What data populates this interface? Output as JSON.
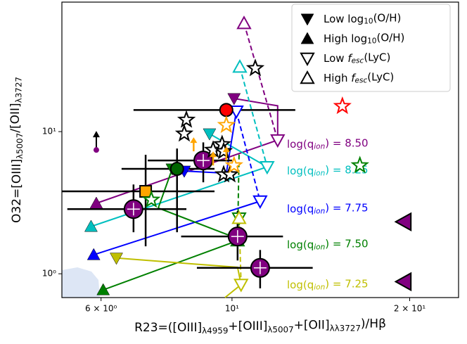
{
  "chart_data": {
    "type": "scatter",
    "log_x": true,
    "log_y": true,
    "xlim": [
      5.15,
      24.2
    ],
    "ylim": [
      0.68,
      81.5
    ],
    "xticks": [
      {
        "value": 6,
        "label": "6 × 10⁰"
      },
      {
        "value": 10,
        "label": "10¹"
      },
      {
        "value": 20,
        "label": "2 × 10¹"
      }
    ],
    "yticks": [
      {
        "value": 1,
        "label": "10⁰"
      },
      {
        "value": 10,
        "label": "10¹"
      }
    ],
    "xlabel": [
      {
        "text": "R23=([OIII]"
      },
      {
        "text": "λ4959",
        "style": "sub"
      },
      {
        "text": "+[OIII]"
      },
      {
        "text": "λ5007",
        "style": "sub"
      },
      {
        "text": "+[OII]"
      },
      {
        "text": "λλ3727",
        "style": "sub"
      },
      {
        "text": ")/Hβ"
      }
    ],
    "ylabel": [
      {
        "text": "O32=[OIII]"
      },
      {
        "text": "λ5007",
        "style": "sub"
      },
      {
        "text": "/[OII]"
      },
      {
        "text": "λ3727",
        "style": "sub"
      }
    ],
    "legend": [
      {
        "marker": "tri-down-filled",
        "label": [
          {
            "text": "Low log"
          },
          {
            "text": "10",
            "style": "sub"
          },
          {
            "text": "(O/H)"
          }
        ]
      },
      {
        "marker": "tri-up-filled",
        "label": [
          {
            "text": "High log"
          },
          {
            "text": "10",
            "style": "sub"
          },
          {
            "text": "(O/H)"
          }
        ]
      },
      {
        "marker": "tri-down-open",
        "label": [
          {
            "text": "Low "
          },
          {
            "text": "f",
            "style": "italic"
          },
          {
            "text": "esc",
            "style": "sub-italic"
          },
          {
            "text": "(LyC)"
          }
        ]
      },
      {
        "marker": "tri-up-open",
        "label": [
          {
            "text": "High "
          },
          {
            "text": "f",
            "style": "italic"
          },
          {
            "text": "esc",
            "style": "sub-italic"
          },
          {
            "text": "(LyC)"
          }
        ]
      }
    ],
    "models": [
      {
        "color": "#800080",
        "label": [
          {
            "text": "log(q"
          },
          {
            "text": "ion",
            "style": "sub-italic"
          },
          {
            "text": ") = 8.50"
          }
        ],
        "segments": [
          {
            "style": "solid",
            "x": [
              5.89,
              11.95
            ],
            "y": [
              3.13,
              8.72
            ]
          },
          {
            "style": "solid",
            "x": [
              10.08,
              11.95,
              11.95
            ],
            "y": [
              17.1,
              15.2,
              8.72
            ]
          },
          {
            "style": "dashed",
            "x": [
              10.48,
              11.95
            ],
            "y": [
              57.8,
              8.72
            ]
          }
        ],
        "markers": [
          {
            "marker": "tri-up-filled",
            "x": 5.89,
            "y": 3.13
          },
          {
            "marker": "tri-down-open",
            "x": 11.95,
            "y": 8.72
          },
          {
            "marker": "tri-down-filled",
            "x": 10.08,
            "y": 17.1
          },
          {
            "marker": "tri-up-open",
            "x": 10.48,
            "y": 57.8
          }
        ]
      },
      {
        "color": "#00bfbf",
        "label": [
          {
            "text": "log(q"
          },
          {
            "text": "ion",
            "style": "sub-italic"
          },
          {
            "text": ") = 8.25"
          }
        ],
        "segments": [
          {
            "style": "solid",
            "x": [
              5.77,
              11.47
            ],
            "y": [
              2.15,
              5.65
            ]
          },
          {
            "style": "solid",
            "x": [
              9.16,
              11.47
            ],
            "y": [
              9.66,
              5.65
            ]
          },
          {
            "style": "dashed",
            "x": [
              10.31,
              11.47
            ],
            "y": [
              28.5,
              5.65
            ]
          }
        ],
        "markers": [
          {
            "marker": "tri-up-filled",
            "x": 5.77,
            "y": 2.15
          },
          {
            "marker": "tri-down-open",
            "x": 11.47,
            "y": 5.65
          },
          {
            "marker": "tri-down-filled",
            "x": 9.16,
            "y": 9.66
          },
          {
            "marker": "tri-up-open",
            "x": 10.31,
            "y": 28.5
          }
        ]
      },
      {
        "color": "#0000ff",
        "label": [
          {
            "text": "log(q"
          },
          {
            "text": "ion",
            "style": "sub-italic"
          },
          {
            "text": ") = 7.75"
          }
        ],
        "segments": [
          {
            "style": "solid",
            "x": [
              5.83,
              11.16
            ],
            "y": [
              1.36,
              3.24
            ]
          },
          {
            "style": "solid",
            "x": [
              8.3,
              9.78,
              10.17
            ],
            "y": [
              5.28,
              5.1,
              13.9
            ]
          },
          {
            "style": "dashed",
            "x": [
              10.17,
              11.16
            ],
            "y": [
              13.9,
              3.24
            ]
          }
        ],
        "markers": [
          {
            "marker": "tri-up-filled",
            "x": 5.83,
            "y": 1.36
          },
          {
            "marker": "tri-down-open",
            "x": 11.16,
            "y": 3.24
          },
          {
            "marker": "tri-down-filled",
            "x": 8.3,
            "y": 5.28
          },
          {
            "marker": "tri-down-open",
            "x": 10.17,
            "y": 13.9
          }
        ]
      },
      {
        "color": "#008000",
        "label": [
          {
            "text": "log(q"
          },
          {
            "text": "ion",
            "style": "sub-italic"
          },
          {
            "text": ") = 7.50"
          }
        ],
        "segments": [
          {
            "style": "solid",
            "x": [
              6.05,
              10.22
            ],
            "y": [
              0.77,
              1.71
            ]
          },
          {
            "style": "solid",
            "x": [
              7.92,
              7.5,
              10.0
            ],
            "y": [
              5.47,
              2.9,
              1.83
            ]
          },
          {
            "style": "dashed",
            "x": [
              10.28,
              10.22
            ],
            "y": [
              6.9,
              1.71
            ]
          }
        ],
        "markers": [
          {
            "marker": "tri-up-filled",
            "x": 6.05,
            "y": 0.77
          },
          {
            "marker": "tri-down-open",
            "x": 10.28,
            "y": 2.46
          },
          {
            "marker": "tri-down-filled",
            "x": 7.92,
            "y": 5.47
          },
          {
            "marker": "tri-up-open",
            "x": 10.22,
            "y": 1.71
          }
        ]
      },
      {
        "color": "#bfbf00",
        "label": [
          {
            "text": "log(q"
          },
          {
            "text": "ion",
            "style": "sub-italic"
          },
          {
            "text": ") = 7.25"
          }
        ],
        "segments": [
          {
            "style": "solid",
            "x": [
              6.37,
              10.22,
              10.36
            ],
            "y": [
              1.29,
              1.11,
              0.84
            ]
          },
          {
            "style": "solid",
            "x": [
              9.73,
              10.36
            ],
            "y": [
              0.68,
              0.84
            ]
          },
          {
            "style": "dashed",
            "x": [
              10.28,
              10.36
            ],
            "y": [
              2.46,
              0.84
            ]
          }
        ],
        "markers": [
          {
            "marker": "tri-down-filled",
            "x": 6.37,
            "y": 1.29
          },
          {
            "marker": "tri-down-open",
            "x": 10.36,
            "y": 0.84
          },
          {
            "marker": "tri-up-open",
            "x": 10.28,
            "y": 2.46
          }
        ]
      }
    ],
    "points": [
      {
        "marker": "circle",
        "color": "#ff0000",
        "x": 9.78,
        "y": 14.2,
        "xrange": [
          6.81,
          12.8
        ]
      },
      {
        "marker": "circle-plus",
        "color": "#800080",
        "x": 8.94,
        "y": 6.27,
        "xrange": [
          7.2,
          10.0
        ],
        "yrange": [
          4.4,
          8.4
        ]
      },
      {
        "marker": "circle-plus",
        "color": "#800080",
        "x": 6.81,
        "y": 2.85,
        "xrange": [
          5.26,
          8.37
        ],
        "yrange": [
          1.96,
          4.25
        ]
      },
      {
        "marker": "circle-plus",
        "color": "#800080",
        "x": 10.22,
        "y": 1.83,
        "xrange": [
          8.2,
          12.2
        ],
        "yrange": [
          1.24,
          2.76
        ]
      },
      {
        "marker": "circle-plus",
        "color": "#800080",
        "x": 11.16,
        "y": 1.1,
        "xrange": [
          8.72,
          13.7
        ],
        "yrange": [
          0.79,
          1.47
        ]
      },
      {
        "marker": "circle",
        "color": "#006400",
        "x": 8.07,
        "y": 5.47,
        "xrange": [
          6.5,
          9.34
        ],
        "yrange": [
          1.96,
          7.6
        ]
      },
      {
        "marker": "square",
        "color": "#ffa500",
        "x": 7.14,
        "y": 3.8,
        "xrange": [
          5.15,
          9.34
        ],
        "yrange": [
          1.56,
          6.87
        ]
      },
      {
        "marker": "star",
        "color": "#000000",
        "x": 8.37,
        "y": 12.1
      },
      {
        "marker": "star",
        "color": "#000000",
        "x": 8.3,
        "y": 9.66
      },
      {
        "marker": "star",
        "color": "#000000",
        "x": 9.29,
        "y": 7.43
      },
      {
        "marker": "star",
        "color": "#000000",
        "x": 9.62,
        "y": 8.14
      },
      {
        "marker": "star",
        "color": "#000000",
        "x": 9.68,
        "y": 7.27
      },
      {
        "marker": "star",
        "color": "#000000",
        "x": 9.68,
        "y": 4.99
      },
      {
        "marker": "star",
        "color": "#000000",
        "x": 9.92,
        "y": 4.99
      },
      {
        "marker": "star",
        "color": "#000000",
        "x": 10.95,
        "y": 27.9
      },
      {
        "marker": "star",
        "color": "#ffa500",
        "x": 9.78,
        "y": 11.1
      },
      {
        "marker": "star",
        "color": "#ffa500",
        "x": 10.08,
        "y": 5.78
      },
      {
        "marker": "star",
        "color": "#ff0000",
        "x": 15.38,
        "y": 15.1
      },
      {
        "marker": "star",
        "color": "#008000",
        "x": 16.47,
        "y": 5.78
      },
      {
        "marker": "star",
        "color": "#008000",
        "x": 7.3,
        "y": 3.31
      },
      {
        "marker": "arrow-up",
        "color": "#ffa500",
        "x": 8.61,
        "y": 7.27
      },
      {
        "marker": "arrow-up",
        "color": "#ffa500",
        "x": 9.29,
        "y": 5.78
      },
      {
        "marker": "arrow-up",
        "color": "#ffa500",
        "x": 9.78,
        "y": 6.27
      },
      {
        "marker": "tri-left",
        "color": "#800080",
        "x": 19.57,
        "y": 2.32
      },
      {
        "marker": "tri-left",
        "color": "#800080",
        "x": 19.57,
        "y": 0.88
      },
      {
        "marker": "dot-arrow-up",
        "color": "#800080",
        "x": 5.89,
        "y": 7.43
      }
    ]
  }
}
